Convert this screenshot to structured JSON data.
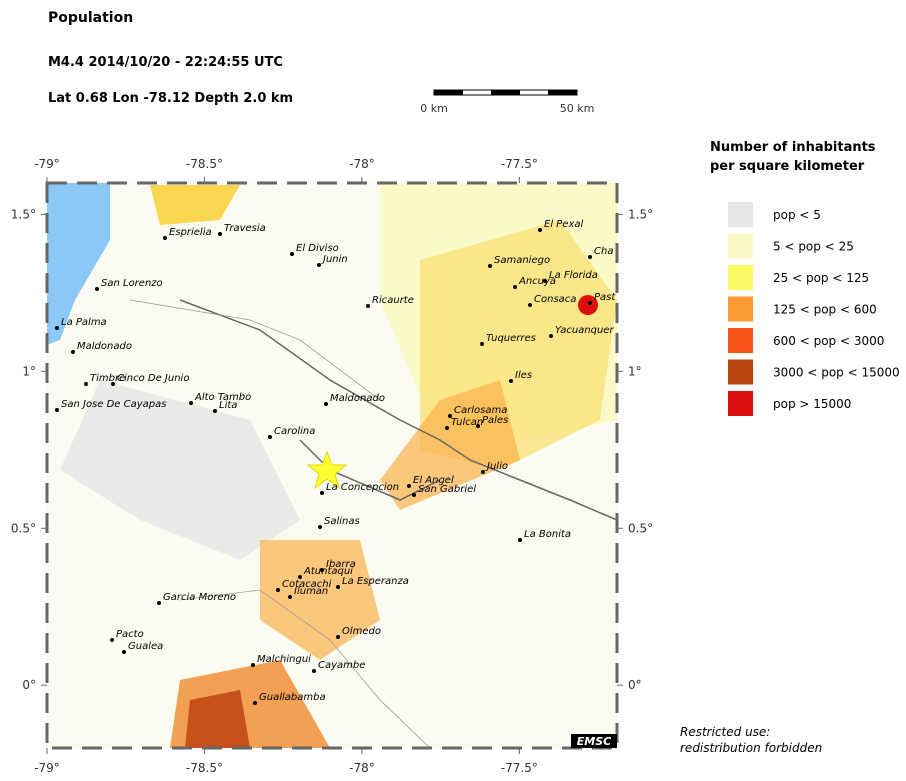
{
  "header": {
    "title": "Population",
    "event": "M4.4  2014/10/20 - 22:24:55 UTC",
    "location": "Lat  0.68    Lon -78.12     Depth  2.0 km"
  },
  "scale_bar": {
    "start_label": "0 km",
    "end_label": "50 km"
  },
  "map": {
    "xlim": [
      -79,
      -77.19
    ],
    "ylim": [
      -0.2,
      1.6
    ],
    "xticks": [
      {
        "value": -79,
        "label": "-79°"
      },
      {
        "value": -78.5,
        "label": "-78.5°"
      },
      {
        "value": -78,
        "label": "-78°"
      },
      {
        "value": -77.5,
        "label": "-77.5°"
      }
    ],
    "yticks": [
      {
        "value": 1.5,
        "label": "1.5°"
      },
      {
        "value": 1,
        "label": "1°"
      },
      {
        "value": 0.5,
        "label": "0.5°"
      },
      {
        "value": 0,
        "label": "0°"
      }
    ],
    "places": [
      "Esprielia",
      "Travesia",
      "El Diviso",
      "Junin",
      "San Lorenzo",
      "La Palma",
      "Maldonado",
      "Timbre",
      "Cinco De Junio",
      "San Jose De Cayapas",
      "Alto Tambo",
      "Lita",
      "Carolina",
      "Maldonado",
      "Ricaurte",
      "El Pexal",
      "Samaniego",
      "Ancuya",
      "La Florida",
      "Consaca",
      "Past",
      "Yacuanquer",
      "Tuquerres",
      "Iles",
      "Cha",
      "Carlosama",
      "Tulcan",
      "Pales",
      "Julio",
      "El Angel",
      "San Gabriel",
      "La Concepcion",
      "Salinas",
      "La Bonita",
      "Ibarra",
      "Atuntaqui",
      "Cotacachi",
      "La Esperanza",
      "Iluman",
      "Garcia Moreno",
      "Pacto",
      "Gualea",
      "Olmedo",
      "Malchingui",
      "Cayambe",
      "Guallabamba"
    ],
    "badge": "EMSC"
  },
  "legend": {
    "title": [
      "Number of inhabitants",
      "per square kilometer"
    ],
    "items": [
      {
        "label": "pop < 5",
        "color": "#e6e6e6"
      },
      {
        "label": "5 < pop < 25",
        "color": "#fafac8"
      },
      {
        "label": "25 < pop < 125",
        "color": "#fafa64"
      },
      {
        "label": "125 < pop < 600",
        "color": "#fa9b32"
      },
      {
        "label": "600 < pop < 3000",
        "color": "#fa5519"
      },
      {
        "label": "3000 < pop < 15000",
        "color": "#b9460f"
      },
      {
        "label": "pop > 15000",
        "color": "#dc0f0f"
      }
    ]
  },
  "notice": [
    "Restricted use:",
    "redistribution forbidden"
  ]
}
